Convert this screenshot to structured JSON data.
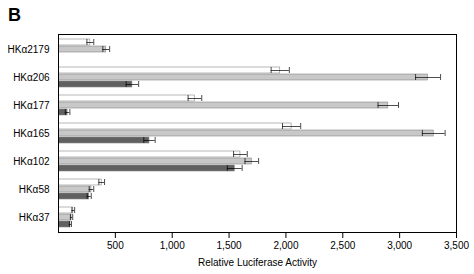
{
  "chart_data": {
    "type": "bar",
    "orientation": "horizontal",
    "title": "B",
    "xlabel": "Relative Luciferase Activity",
    "categories": [
      "HKα2179",
      "HKα206",
      "HKα177",
      "HKα165",
      "HKα102",
      "HKα58",
      "HKα37"
    ],
    "series": [
      {
        "color": "#ffffff",
        "values": [
          280,
          1950,
          1200,
          2050,
          1600,
          380,
          130
        ],
        "errors": [
          30,
          80,
          60,
          80,
          60,
          25,
          12
        ]
      },
      {
        "color": "#c8c8c8",
        "values": [
          420,
          3250,
          2900,
          3300,
          1700,
          290,
          115
        ],
        "errors": [
          30,
          110,
          90,
          100,
          60,
          20,
          10
        ]
      },
      {
        "color": "#606060",
        "values": [
          0,
          650,
          80,
          800,
          1550,
          270,
          105
        ],
        "errors": [
          0,
          55,
          20,
          50,
          65,
          18,
          9
        ]
      }
    ],
    "xlim": [
      0,
      3500
    ],
    "xticks": [
      500,
      1000,
      1500,
      2000,
      2500,
      3000,
      3500
    ],
    "grid": false
  }
}
